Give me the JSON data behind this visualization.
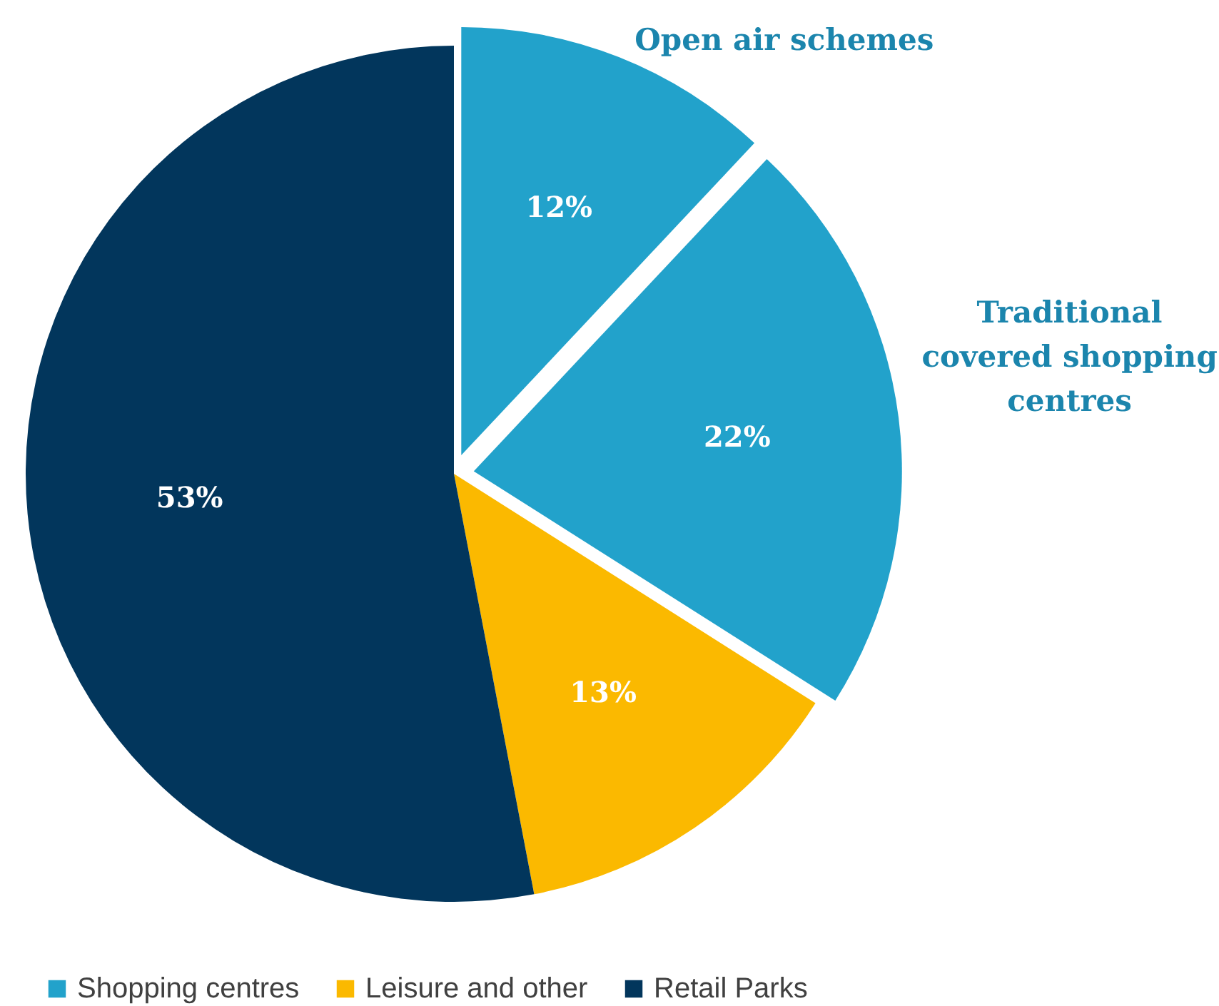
{
  "chart_data": {
    "type": "pie",
    "categories": [
      "Shopping centres",
      null,
      "Leisure and other",
      "Retail Parks"
    ],
    "value_labels": [
      "12%",
      "22%",
      "13%",
      "53%"
    ],
    "values": [
      12,
      22,
      13,
      53
    ],
    "colors": [
      "#22a2cb",
      "#22a2cb",
      "#fbb900",
      "#02365c"
    ],
    "annotations": [
      "Open air schemes",
      "Traditional covered shopping centres"
    ],
    "legend": "bottom"
  }
}
